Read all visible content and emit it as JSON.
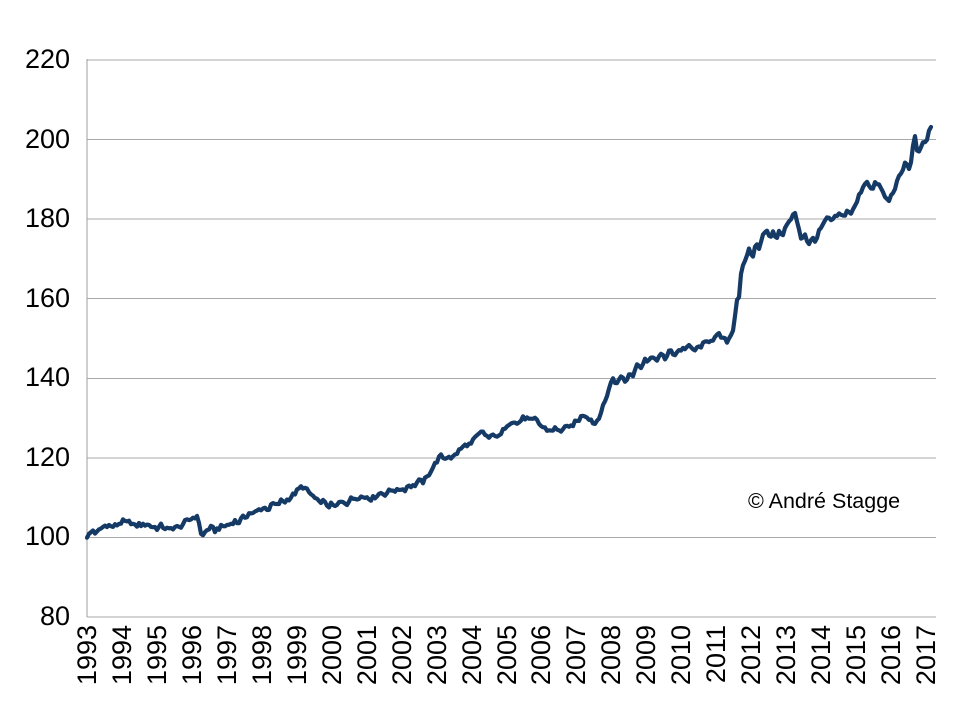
{
  "watermark": "© André Stagge",
  "colors": {
    "series_line": "#153A66",
    "gridline": "#A9A9A9",
    "axis_line": "#9E9E9E",
    "text": "#000000",
    "background": "#FFFFFF"
  },
  "chart_data": {
    "type": "line",
    "title": "",
    "xlabel": "",
    "ylabel": "",
    "legend": "none",
    "grid": "horizontal",
    "xlim": [
      1993,
      2017.3
    ],
    "ylim": [
      80,
      220
    ],
    "y_ticks": [
      80,
      100,
      120,
      140,
      160,
      180,
      200,
      220
    ],
    "x_ticks": [
      "1993",
      "1994",
      "1995",
      "1996",
      "1997",
      "1998",
      "1999",
      "2000",
      "2001",
      "2002",
      "2003",
      "2004",
      "2005",
      "2006",
      "2007",
      "2008",
      "2009",
      "2010",
      "2011",
      "2012",
      "2013",
      "2014",
      "2015",
      "2016",
      "2017"
    ],
    "annotation": "© André Stagge",
    "series": [
      {
        "name": "",
        "color": "#153A66",
        "points": [
          [
            1993.0,
            100.0
          ],
          [
            1993.08,
            100.9
          ],
          [
            1993.17,
            101.8
          ],
          [
            1993.26,
            100.9
          ],
          [
            1993.38,
            102.1
          ],
          [
            1993.5,
            102.9
          ],
          [
            1993.6,
            103.2
          ],
          [
            1993.7,
            102.6
          ],
          [
            1993.82,
            103.0
          ],
          [
            1993.92,
            103.5
          ],
          [
            1994.05,
            104.1
          ],
          [
            1994.15,
            103.6
          ],
          [
            1994.24,
            104.0
          ],
          [
            1994.38,
            102.7
          ],
          [
            1994.5,
            103.4
          ],
          [
            1994.6,
            103.0
          ],
          [
            1994.7,
            103.5
          ],
          [
            1994.82,
            102.8
          ],
          [
            1994.93,
            102.6
          ],
          [
            1995.02,
            102.2
          ],
          [
            1995.12,
            103.0
          ],
          [
            1995.22,
            102.4
          ],
          [
            1995.35,
            101.9
          ],
          [
            1995.5,
            102.7
          ],
          [
            1995.63,
            102.4
          ],
          [
            1995.78,
            103.7
          ],
          [
            1995.9,
            104.3
          ],
          [
            1996.0,
            104.8
          ],
          [
            1996.1,
            105.3
          ],
          [
            1996.18,
            104.7
          ],
          [
            1996.24,
            102.5
          ],
          [
            1996.28,
            99.8
          ],
          [
            1996.36,
            101.1
          ],
          [
            1996.46,
            102.1
          ],
          [
            1996.56,
            102.5
          ],
          [
            1996.66,
            101.7
          ],
          [
            1996.76,
            102.3
          ],
          [
            1996.88,
            102.8
          ],
          [
            1997.0,
            103.0
          ],
          [
            1997.12,
            103.5
          ],
          [
            1997.22,
            104.2
          ],
          [
            1997.32,
            103.6
          ],
          [
            1997.45,
            104.9
          ],
          [
            1997.55,
            105.3
          ],
          [
            1997.66,
            106.3
          ],
          [
            1997.76,
            105.9
          ],
          [
            1997.86,
            106.6
          ],
          [
            1997.96,
            107.2
          ],
          [
            1998.1,
            107.4
          ],
          [
            1998.2,
            107.1
          ],
          [
            1998.32,
            108.5
          ],
          [
            1998.44,
            108.0
          ],
          [
            1998.56,
            109.3
          ],
          [
            1998.66,
            109.0
          ],
          [
            1998.76,
            109.7
          ],
          [
            1998.87,
            110.4
          ],
          [
            1998.97,
            111.3
          ],
          [
            1999.07,
            112.2
          ],
          [
            1999.16,
            112.9
          ],
          [
            1999.27,
            112.0
          ],
          [
            1999.37,
            111.1
          ],
          [
            1999.47,
            110.3
          ],
          [
            1999.57,
            109.3
          ],
          [
            1999.64,
            108.7
          ],
          [
            1999.72,
            109.4
          ],
          [
            1999.82,
            108.4
          ],
          [
            1999.92,
            107.9
          ],
          [
            2000.0,
            108.3
          ],
          [
            2000.1,
            107.6
          ],
          [
            2000.22,
            108.7
          ],
          [
            2000.32,
            109.1
          ],
          [
            2000.44,
            108.6
          ],
          [
            2000.56,
            109.7
          ],
          [
            2000.7,
            110.0
          ],
          [
            2000.82,
            110.3
          ],
          [
            2000.92,
            110.0
          ],
          [
            2001.02,
            110.3
          ],
          [
            2001.14,
            109.6
          ],
          [
            2001.27,
            110.5
          ],
          [
            2001.4,
            111.2
          ],
          [
            2001.52,
            110.9
          ],
          [
            2001.64,
            111.6
          ],
          [
            2001.76,
            112.1
          ],
          [
            2001.86,
            111.6
          ],
          [
            2001.96,
            112.4
          ],
          [
            2002.08,
            111.9
          ],
          [
            2002.2,
            113.2
          ],
          [
            2002.34,
            112.8
          ],
          [
            2002.48,
            114.2
          ],
          [
            2002.6,
            113.9
          ],
          [
            2002.72,
            115.0
          ],
          [
            2002.84,
            116.9
          ],
          [
            2002.94,
            118.2
          ],
          [
            2003.04,
            119.7
          ],
          [
            2003.14,
            120.5
          ],
          [
            2003.24,
            119.8
          ],
          [
            2003.34,
            120.6
          ],
          [
            2003.44,
            119.9
          ],
          [
            2003.56,
            121.0
          ],
          [
            2003.66,
            122.0
          ],
          [
            2003.78,
            122.9
          ],
          [
            2003.88,
            123.5
          ],
          [
            2003.96,
            123.1
          ],
          [
            2004.08,
            124.7
          ],
          [
            2004.2,
            125.8
          ],
          [
            2004.32,
            126.6
          ],
          [
            2004.42,
            125.5
          ],
          [
            2004.52,
            124.9
          ],
          [
            2004.66,
            126.0
          ],
          [
            2004.8,
            125.1
          ],
          [
            2004.97,
            128.0
          ],
          [
            2005.15,
            129.3
          ],
          [
            2005.3,
            128.5
          ],
          [
            2005.5,
            130.2
          ],
          [
            2005.7,
            129.3
          ],
          [
            2005.85,
            129.8
          ],
          [
            2005.97,
            128.1
          ],
          [
            2006.1,
            127.4
          ],
          [
            2006.22,
            126.8
          ],
          [
            2006.4,
            127.4
          ],
          [
            2006.52,
            126.5
          ],
          [
            2006.66,
            127.9
          ],
          [
            2006.78,
            127.3
          ],
          [
            2006.92,
            128.6
          ],
          [
            2007.06,
            129.5
          ],
          [
            2007.2,
            131.0
          ],
          [
            2007.3,
            130.4
          ],
          [
            2007.42,
            129.6
          ],
          [
            2007.52,
            128.4
          ],
          [
            2007.62,
            129.9
          ],
          [
            2007.72,
            131.8
          ],
          [
            2007.82,
            134.2
          ],
          [
            2007.92,
            137.2
          ],
          [
            2008.05,
            140.2
          ],
          [
            2008.15,
            138.3
          ],
          [
            2008.28,
            140.8
          ],
          [
            2008.42,
            138.9
          ],
          [
            2008.52,
            141.9
          ],
          [
            2008.62,
            140.7
          ],
          [
            2008.72,
            143.7
          ],
          [
            2008.82,
            142.4
          ],
          [
            2008.95,
            145.0
          ],
          [
            2009.05,
            143.6
          ],
          [
            2009.17,
            146.0
          ],
          [
            2009.3,
            144.0
          ],
          [
            2009.45,
            146.6
          ],
          [
            2009.55,
            144.6
          ],
          [
            2009.68,
            147.2
          ],
          [
            2009.8,
            145.9
          ],
          [
            2009.92,
            147.0
          ],
          [
            2010.05,
            147.4
          ],
          [
            2010.2,
            148.0
          ],
          [
            2010.38,
            147.0
          ],
          [
            2010.55,
            148.1
          ],
          [
            2010.7,
            148.9
          ],
          [
            2010.82,
            149.7
          ],
          [
            2010.92,
            149.9
          ],
          [
            2011.08,
            150.9
          ],
          [
            2011.2,
            149.8
          ],
          [
            2011.32,
            149.3
          ],
          [
            2011.42,
            150.9
          ],
          [
            2011.5,
            153.0
          ],
          [
            2011.56,
            157.8
          ],
          [
            2011.62,
            161.5
          ],
          [
            2011.66,
            160.4
          ],
          [
            2011.7,
            165.5
          ],
          [
            2011.75,
            167.3
          ],
          [
            2011.79,
            169.6
          ],
          [
            2011.83,
            168.8
          ],
          [
            2011.88,
            171.2
          ],
          [
            2011.94,
            172.5
          ],
          [
            2012.03,
            170.3
          ],
          [
            2012.14,
            173.8
          ],
          [
            2012.22,
            172.9
          ],
          [
            2012.32,
            175.9
          ],
          [
            2012.42,
            177.6
          ],
          [
            2012.52,
            175.2
          ],
          [
            2012.62,
            176.5
          ],
          [
            2012.72,
            175.4
          ],
          [
            2012.82,
            176.9
          ],
          [
            2012.9,
            176.2
          ],
          [
            2013.0,
            178.3
          ],
          [
            2013.12,
            179.7
          ],
          [
            2013.24,
            181.6
          ],
          [
            2013.34,
            178.6
          ],
          [
            2013.44,
            174.8
          ],
          [
            2013.54,
            176.4
          ],
          [
            2013.64,
            173.3
          ],
          [
            2013.76,
            175.3
          ],
          [
            2013.85,
            174.6
          ],
          [
            2013.95,
            177.0
          ],
          [
            2014.06,
            178.7
          ],
          [
            2014.2,
            180.4
          ],
          [
            2014.32,
            179.4
          ],
          [
            2014.48,
            181.3
          ],
          [
            2014.62,
            180.6
          ],
          [
            2014.76,
            182.2
          ],
          [
            2014.87,
            181.4
          ],
          [
            2015.0,
            183.8
          ],
          [
            2015.1,
            186.3
          ],
          [
            2015.2,
            188.3
          ],
          [
            2015.32,
            189.8
          ],
          [
            2015.45,
            187.0
          ],
          [
            2015.57,
            189.4
          ],
          [
            2015.68,
            188.2
          ],
          [
            2015.8,
            186.0
          ],
          [
            2015.92,
            184.3
          ],
          [
            2016.06,
            186.9
          ],
          [
            2016.18,
            189.5
          ],
          [
            2016.3,
            191.7
          ],
          [
            2016.43,
            194.6
          ],
          [
            2016.52,
            192.1
          ],
          [
            2016.6,
            196.3
          ],
          [
            2016.68,
            201.4
          ],
          [
            2016.77,
            195.9
          ],
          [
            2016.87,
            198.0
          ],
          [
            2016.95,
            199.7
          ],
          [
            2017.0,
            198.9
          ],
          [
            2017.07,
            202.7
          ],
          [
            2017.11,
            201.9
          ],
          [
            2017.18,
            204.6
          ]
        ]
      }
    ]
  }
}
